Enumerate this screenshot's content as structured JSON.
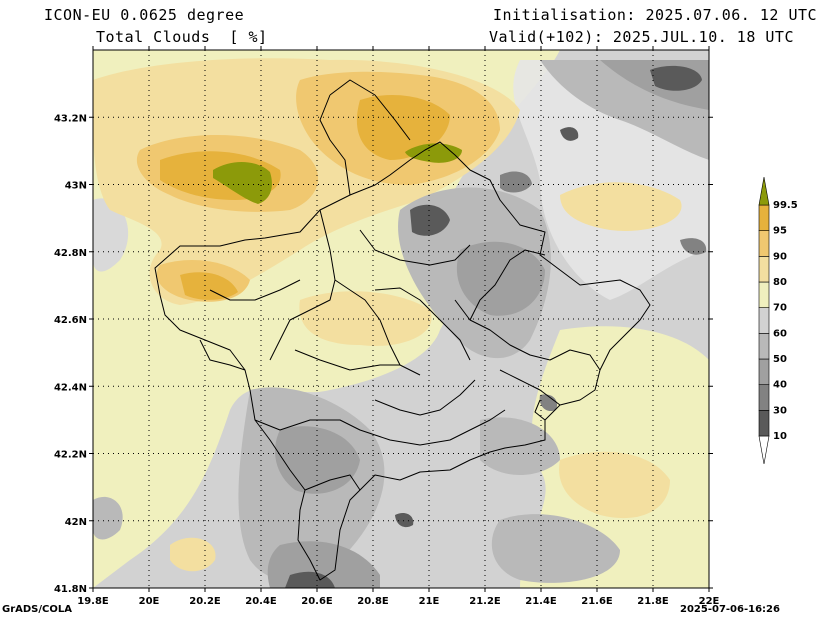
{
  "header": {
    "model": "ICON-EU 0.0625 degree",
    "variable": "Total Clouds  [ %]",
    "init": "Initialisation: 2025.07.06. 12 UTC",
    "valid": "Valid(+102): 2025.JUL.10. 18 UTC"
  },
  "footer": {
    "credit": "GrADS/COLA",
    "timestamp": "2025-07-06-16:26"
  },
  "map": {
    "lon_range": [
      19.8,
      22.0
    ],
    "lat_range": [
      41.8,
      43.4
    ],
    "lon_ticks": [
      "19.8E",
      "20E",
      "20.2E",
      "20.4E",
      "20.6E",
      "20.8E",
      "21E",
      "21.2E",
      "21.4E",
      "21.6E",
      "21.8E",
      "22E"
    ],
    "lat_ticks": [
      "41.8N",
      "42N",
      "42.2N",
      "42.4N",
      "42.6N",
      "42.8N",
      "43N",
      "43.2N"
    ],
    "grid": "dotted"
  },
  "legend": {
    "levels": [
      "10",
      "30",
      "40",
      "50",
      "60",
      "70",
      "80",
      "90",
      "95",
      "99.5"
    ],
    "colors": [
      "#5a5a5a",
      "#828282",
      "#a0a0a0",
      "#b9b9b9",
      "#d2d2d2",
      "#f0f0be",
      "#f3dfa0",
      "#f0c870",
      "#e6b23c",
      "#8c9a0a"
    ]
  }
}
